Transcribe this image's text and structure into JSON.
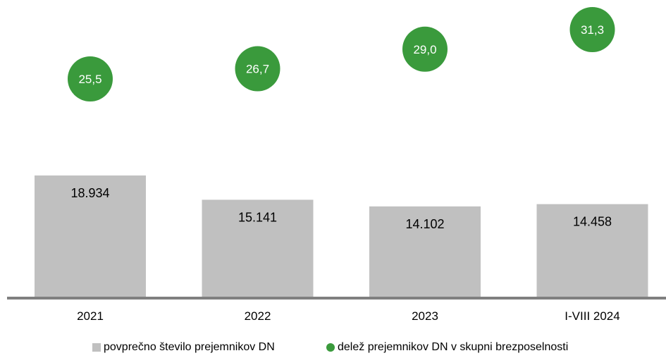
{
  "chart_data": {
    "type": "bar",
    "categories": [
      "2021",
      "2022",
      "2023",
      "I-VIII 2024"
    ],
    "series": [
      {
        "name": "povprečno število prejemnikov DN",
        "kind": "bar",
        "values": [
          18934,
          15141,
          14102,
          14458
        ],
        "labels": [
          "18.934",
          "15.141",
          "14.102",
          "14.458"
        ],
        "color": "#c0c0c0"
      },
      {
        "name": "delež prejemnikov DN v skupni brezposelnosti",
        "kind": "dot",
        "values": [
          25.5,
          26.7,
          29.0,
          31.3
        ],
        "labels": [
          "25,5",
          "26,7",
          "29,0",
          "31,3"
        ],
        "color": "#3a9a3c"
      }
    ],
    "bar_axis_range": [
      0,
      19000
    ],
    "dot_axis_range": [
      0,
      33
    ],
    "grid": false,
    "legend_position": "bottom",
    "axis_color": "#808080",
    "label_color_bars": "#000000",
    "label_color_dots": "#ffffff"
  }
}
